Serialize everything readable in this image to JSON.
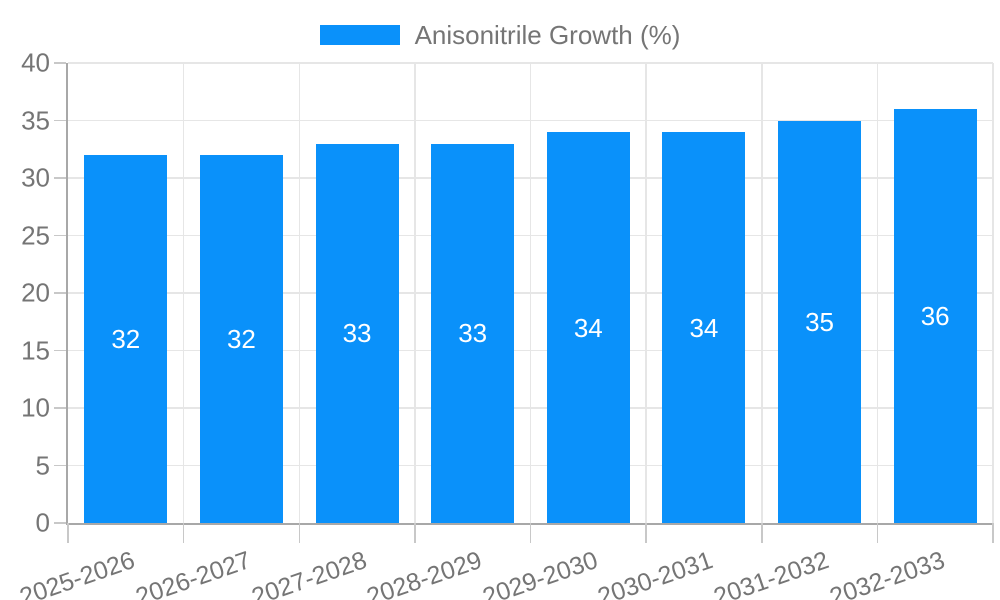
{
  "colors": {
    "bar": "#0a91fa",
    "grid": "#e6e6e6",
    "axis": "#a8a8a8",
    "tick": "#c8c8c8",
    "text": "#757575",
    "value_label": "#ffffff",
    "background": "#ffffff"
  },
  "legend": {
    "label": "Anisonitrile Growth (%)",
    "position": "top-center"
  },
  "chart_data": {
    "type": "bar",
    "categories": [
      "2025-2026",
      "2026-2027",
      "2027-2028",
      "2028-2029",
      "2029-2030",
      "2030-2031",
      "2031-2032",
      "2032-2033"
    ],
    "series": [
      {
        "name": "Anisonitrile Growth (%)",
        "values": [
          32,
          32,
          33,
          33,
          34,
          34,
          35,
          36
        ]
      }
    ],
    "xlabel": "",
    "ylabel": "",
    "ylim": [
      0,
      40
    ],
    "yticks": [
      0,
      5,
      10,
      15,
      20,
      25,
      30,
      35,
      40
    ],
    "ytick_step": 5,
    "grid": true,
    "x_label_rotation_deg": -19,
    "value_labels": "inside-center",
    "legend_position": "top-center"
  }
}
